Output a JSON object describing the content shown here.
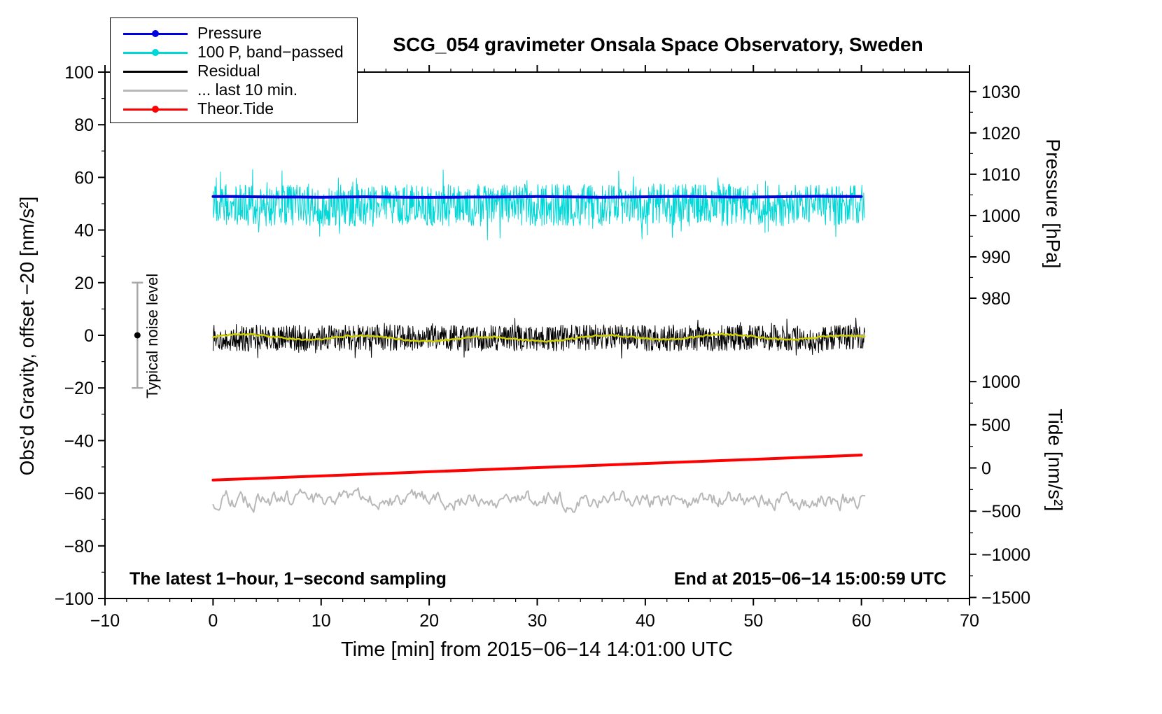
{
  "page": {
    "background": "#ffffff"
  },
  "chart_data": {
    "type": "line",
    "title": "SCG_054 gravimeter Onsala Space Observatory, Sweden",
    "xlabel": "Time [min] from 2015−06−14 14:01:00 UTC",
    "ylabel_left": "Obs'd Gravity, offset −20 [nm/s²]",
    "xlim": [
      -10,
      70
    ],
    "ylim_left": [
      -100,
      100
    ],
    "x_ticks": [
      -10,
      0,
      10,
      20,
      30,
      40,
      50,
      60,
      70
    ],
    "x_minor_step": 2,
    "y_ticks_left": [
      -100,
      -80,
      -60,
      -40,
      -20,
      0,
      20,
      40,
      60,
      80,
      100
    ],
    "y_minor_step_left": 10,
    "grid": false,
    "pressure_axis": {
      "label": "Pressure [hPa]",
      "ticks": [
        1030,
        1020,
        1010,
        1000,
        990,
        980
      ],
      "minor_ticks": [
        1025,
        1015,
        1005,
        995,
        985
      ],
      "left_equiv_1000": 45.5,
      "left_per_hpa": 1.57
    },
    "tide_axis": {
      "label": "Tide [nm/s²]",
      "ticks": [
        1000,
        500,
        0,
        -500,
        -1000,
        -1500
      ],
      "minor_ticks": [
        750,
        250,
        -250,
        -750,
        -1250
      ],
      "left_equiv_0": -50.4,
      "left_per_unit": 0.0328
    },
    "legend": {
      "position": "top-left",
      "items": [
        {
          "label": "Pressure",
          "color": "#0000e0",
          "dot": true
        },
        {
          "label": "100 P, band−passed",
          "color": "#00d8d8",
          "dot": true
        },
        {
          "label": "Residual",
          "color": "#000000",
          "dot": false
        },
        {
          "label": "... last 10 min.",
          "color": "#b8b8b8",
          "dot": false
        },
        {
          "label": "Theor.Tide",
          "color": "#ff0000",
          "dot": true
        }
      ]
    },
    "annotations": {
      "sampling": "The latest 1−hour, 1−second sampling",
      "end": "End at 2015−06−14 15:00:59 UTC",
      "noise": {
        "label": "Typical noise level",
        "x": -7,
        "bar_min": -20,
        "bar_max": 20,
        "dot_value": 0
      }
    },
    "series": [
      {
        "name": "100 P, band−passed",
        "color": "#00d8d8",
        "width": 1,
        "kind": "noisy",
        "axis": "left",
        "x_range": [
          0,
          60.3
        ],
        "n": 1400,
        "mean": 49.5,
        "sigma": 8,
        "spike": 13.5
      },
      {
        "name": "Pressure",
        "color": "#0000e0",
        "width": 4,
        "kind": "line",
        "axis": "pressure",
        "x": [
          0,
          2,
          4,
          6,
          8,
          10,
          12,
          14,
          16,
          18,
          20,
          22,
          24,
          26,
          28,
          30,
          32,
          34,
          36,
          38,
          40,
          42,
          44,
          46,
          48,
          50,
          52,
          54,
          56,
          58,
          60
        ],
        "values": [
          1004.6,
          1004.6,
          1004.55,
          1004.5,
          1004.5,
          1004.45,
          1004.5,
          1004.55,
          1004.5,
          1004.45,
          1004.4,
          1004.45,
          1004.5,
          1004.5,
          1004.55,
          1004.6,
          1004.55,
          1004.5,
          1004.45,
          1004.5,
          1004.55,
          1004.6,
          1004.6,
          1004.55,
          1004.5,
          1004.5,
          1004.55,
          1004.6,
          1004.65,
          1004.6,
          1004.6
        ]
      },
      {
        "name": "Residual",
        "color": "#000000",
        "width": 1,
        "kind": "noisy",
        "axis": "left",
        "x_range": [
          0,
          60.3
        ],
        "n": 1400,
        "mean": -1,
        "sigma": 5,
        "spike": 8
      },
      {
        "name": "Residual smoothed",
        "color": "#cfcf00",
        "width": 2.5,
        "kind": "smooth",
        "axis": "left",
        "x_range": [
          0,
          60.3
        ],
        "n": 400,
        "mean": -1,
        "amp": 0.9
      },
      {
        "name": "... last 10 min.",
        "color": "#b8b8b8",
        "width": 2,
        "kind": "wiggly",
        "axis": "left",
        "x_range": [
          0,
          60.3
        ],
        "n": 450,
        "mean": -62.5,
        "amp": 2.4,
        "smooth": 0.65
      },
      {
        "name": "Theor.Tide",
        "color": "#ff0000",
        "width": 4,
        "kind": "line",
        "axis": "tide",
        "x": [
          0,
          10,
          20,
          30,
          40,
          50,
          60
        ],
        "values": [
          -140,
          -92,
          -44,
          4,
          52,
          100,
          149
        ]
      }
    ]
  }
}
